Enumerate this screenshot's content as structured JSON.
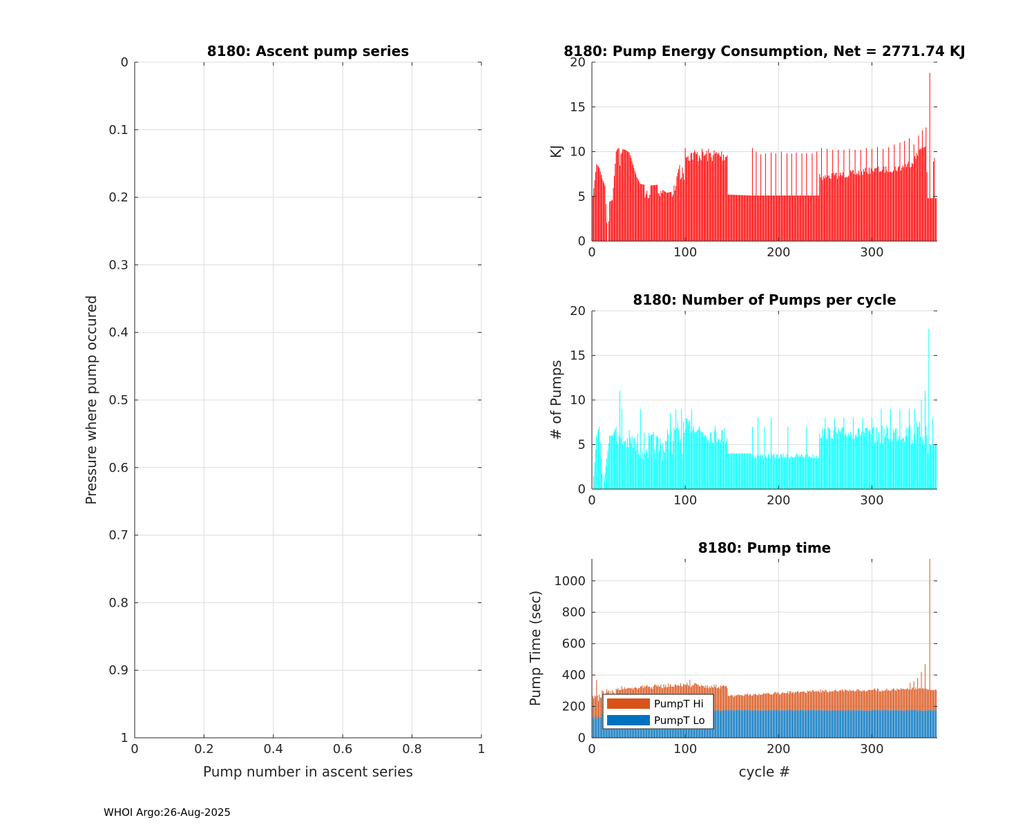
{
  "footer": "WHOI Argo:26-Aug-2025",
  "chart_data": [
    {
      "id": "ascent",
      "type": "line",
      "title": "8180: Ascent pump series",
      "xlabel": "Pump number in ascent series",
      "ylabel": "Pressure where pump occured",
      "xlim": [
        0,
        1
      ],
      "ylim": [
        0,
        1
      ],
      "y_reversed": true,
      "grid": true,
      "xticks": [
        0,
        0.2,
        0.4,
        0.6,
        0.8,
        1
      ],
      "xtick_labels": [
        "0",
        "0.2",
        "0.4",
        "0.6",
        "0.8",
        "1"
      ],
      "yticks": [
        0,
        0.1,
        0.2,
        0.3,
        0.4,
        0.5,
        0.6,
        0.7,
        0.8,
        0.9,
        1
      ],
      "ytick_labels": [
        "0",
        "0.1",
        "0.2",
        "0.3",
        "0.4",
        "0.5",
        "0.6",
        "0.7",
        "0.8",
        "0.9",
        "1"
      ],
      "series": []
    },
    {
      "id": "energy",
      "type": "bar",
      "title": "8180: Pump Energy Consumption,  Net = 2771.74 KJ",
      "xlabel": "",
      "ylabel": "KJ",
      "xlim": [
        0,
        370
      ],
      "ylim": [
        0,
        20
      ],
      "grid": true,
      "color": "#ff0000",
      "xticks": [
        0,
        100,
        200,
        300
      ],
      "xtick_labels": [
        "0",
        "100",
        "200",
        "300"
      ],
      "yticks": [
        0,
        5,
        10,
        15,
        20
      ],
      "ytick_labels": [
        "0",
        "5",
        "10",
        "15",
        "20"
      ],
      "segments": [
        [
          1,
          5,
          0
        ],
        [
          5,
          8.6,
          0
        ],
        [
          8,
          8.2,
          0
        ],
        [
          11,
          7,
          0
        ],
        [
          14,
          6.2,
          0
        ],
        [
          17,
          0,
          0
        ],
        [
          19,
          4.4,
          0
        ],
        [
          22,
          4.6,
          0
        ],
        [
          26,
          10,
          0
        ],
        [
          28,
          10.4,
          0.2
        ],
        [
          32,
          10.3,
          0
        ],
        [
          36,
          10.2,
          0
        ],
        [
          40,
          9.9,
          0
        ],
        [
          42,
          9.3,
          0
        ],
        [
          45,
          8.2,
          0
        ],
        [
          48,
          7.2,
          0
        ],
        [
          52,
          6.4,
          0
        ],
        [
          56,
          6.3,
          0.3
        ],
        [
          62,
          6.2,
          0
        ],
        [
          70,
          6.3,
          0.2
        ],
        [
          75,
          5.8,
          0
        ],
        [
          80,
          5.4,
          0
        ],
        [
          85,
          5.5,
          0.2
        ],
        [
          90,
          6.8,
          0
        ],
        [
          94,
          8.5,
          0.2
        ],
        [
          99,
          8.4,
          0
        ],
        [
          100,
          10.4,
          0.15
        ],
        [
          145,
          10.4,
          0
        ],
        [
          146,
          5.2,
          0
        ],
        [
          170,
          5.1,
          0
        ],
        [
          171,
          5.1,
          0
        ],
        [
          243,
          5.1,
          0
        ],
        [
          244,
          7.5,
          0.1
        ],
        [
          270,
          7.8,
          0.1
        ],
        [
          300,
          8.3,
          0.1
        ],
        [
          330,
          8.6,
          0.1
        ],
        [
          342,
          9.2,
          0.1
        ],
        [
          350,
          10.2,
          0
        ],
        [
          358,
          10.6,
          0
        ],
        [
          360,
          4.8,
          0
        ],
        [
          370,
          4.8,
          0
        ]
      ],
      "spikes": [
        [
          172,
          10.4
        ],
        [
          176,
          10
        ],
        [
          181,
          9.7
        ],
        [
          186,
          9.8
        ],
        [
          192,
          9.9
        ],
        [
          197,
          9.8
        ],
        [
          203,
          10
        ],
        [
          209,
          9.8
        ],
        [
          214,
          9.8
        ],
        [
          219,
          9.9
        ],
        [
          225,
          9.8
        ],
        [
          230,
          9.8
        ],
        [
          236,
          9.8
        ],
        [
          241,
          10
        ],
        [
          246,
          10.4
        ],
        [
          252,
          10.3
        ],
        [
          258,
          10.2
        ],
        [
          264,
          10.2
        ],
        [
          270,
          10.2
        ],
        [
          276,
          10.3
        ],
        [
          282,
          10.2
        ],
        [
          288,
          10.2
        ],
        [
          294,
          10.4
        ],
        [
          300,
          10.3
        ],
        [
          306,
          10.5
        ],
        [
          312,
          10.3
        ],
        [
          318,
          10.5
        ],
        [
          324,
          10.8
        ],
        [
          330,
          11
        ],
        [
          335,
          11.2
        ],
        [
          340,
          11.5
        ],
        [
          345,
          10.8
        ],
        [
          350,
          11.8
        ],
        [
          354,
          12.4
        ],
        [
          358,
          12.7
        ],
        [
          362,
          18.8
        ],
        [
          366,
          8.9
        ],
        [
          367,
          9.3
        ]
      ]
    },
    {
      "id": "pumps",
      "type": "bar",
      "title": "8180: Number of Pumps per cycle",
      "xlabel": "",
      "ylabel": "# of Pumps",
      "xlim": [
        0,
        370
      ],
      "ylim": [
        0,
        20
      ],
      "grid": true,
      "color": "#00ffff",
      "xticks": [
        0,
        100,
        200,
        300
      ],
      "xtick_labels": [
        "0",
        "100",
        "200",
        "300"
      ],
      "yticks": [
        0,
        5,
        10,
        15,
        20
      ],
      "ytick_labels": [
        "0",
        "5",
        "10",
        "15",
        "20"
      ],
      "segments": [
        [
          1,
          0,
          0
        ],
        [
          5,
          6,
          0
        ],
        [
          8,
          7,
          0
        ],
        [
          12,
          0,
          0
        ],
        [
          19,
          6,
          0
        ],
        [
          22,
          6,
          0
        ],
        [
          26,
          7,
          0.3
        ],
        [
          30,
          7,
          0.4
        ],
        [
          45,
          6.5,
          0.5
        ],
        [
          60,
          6.4,
          0.5
        ],
        [
          75,
          6.5,
          0.5
        ],
        [
          90,
          7.5,
          0.5
        ],
        [
          100,
          8,
          0.2
        ],
        [
          115,
          7.6,
          0.3
        ],
        [
          145,
          7,
          0
        ],
        [
          146,
          4,
          0
        ],
        [
          170,
          4,
          0.15
        ],
        [
          200,
          4,
          0.15
        ],
        [
          243,
          4,
          0.15
        ],
        [
          244,
          7,
          0.2
        ],
        [
          300,
          7,
          0.3
        ],
        [
          340,
          7.6,
          0.4
        ],
        [
          359,
          7.7,
          0.4
        ],
        [
          360,
          5,
          0
        ],
        [
          370,
          5,
          0
        ]
      ],
      "spikes": [
        [
          30,
          11
        ],
        [
          32,
          9
        ],
        [
          52,
          9
        ],
        [
          84,
          8.5
        ],
        [
          90,
          9
        ],
        [
          96,
          9
        ],
        [
          107,
          9
        ],
        [
          172,
          7
        ],
        [
          178,
          8
        ],
        [
          185,
          7
        ],
        [
          192,
          8
        ],
        [
          210,
          7
        ],
        [
          230,
          7
        ],
        [
          250,
          8
        ],
        [
          260,
          8
        ],
        [
          270,
          8
        ],
        [
          280,
          8
        ],
        [
          290,
          8
        ],
        [
          300,
          8
        ],
        [
          310,
          9
        ],
        [
          320,
          9
        ],
        [
          330,
          9
        ],
        [
          340,
          9
        ],
        [
          346,
          9
        ],
        [
          353,
          10
        ],
        [
          357,
          11
        ],
        [
          361,
          18
        ],
        [
          365,
          8
        ]
      ]
    },
    {
      "id": "pumptime",
      "type": "bar",
      "stacked": true,
      "title": "8180: Pump time",
      "xlabel": "cycle #",
      "ylabel": "Pump Time (sec)",
      "xlim": [
        0,
        370
      ],
      "ylim": [
        0,
        1140
      ],
      "grid": true,
      "xticks": [
        0,
        100,
        200,
        300
      ],
      "xtick_labels": [
        "0",
        "100",
        "200",
        "300"
      ],
      "yticks": [
        0,
        200,
        400,
        600,
        800,
        1000
      ],
      "ytick_labels": [
        "0",
        "200",
        "400",
        "600",
        "800",
        "1000"
      ],
      "legend": {
        "location": "bottom-left",
        "entries": [
          {
            "label": "PumpT Hi",
            "color": "#d95319"
          },
          {
            "label": "PumpT Lo",
            "color": "#0072bd"
          }
        ]
      },
      "series": [
        {
          "name": "PumpT Lo",
          "color": "#0072bd",
          "segments": [
            [
              1,
              150,
              0.3
            ],
            [
              25,
              180,
              0.05
            ],
            [
              370,
              180,
              0
            ]
          ]
        },
        {
          "name": "PumpT Hi",
          "color": "#d95319",
          "segments": [
            [
              1,
              170,
              0.4
            ],
            [
              25,
              150,
              0.15
            ],
            [
              100,
              175,
              0.15
            ],
            [
              145,
              160,
              0
            ],
            [
              146,
              95,
              0.1
            ],
            [
              243,
              130,
              0.12
            ],
            [
              330,
              140,
              0.1
            ],
            [
              359,
              150,
              0
            ],
            [
              360,
              130,
              0
            ],
            [
              370,
              130,
              0
            ]
          ]
        }
      ],
      "spikes": [
        [
          5,
          370
        ],
        [
          362,
          1140
        ],
        [
          357,
          470
        ],
        [
          353,
          420
        ],
        [
          349,
          380
        ],
        [
          345,
          360
        ],
        [
          341,
          350
        ],
        [
          105,
          370
        ]
      ]
    }
  ]
}
